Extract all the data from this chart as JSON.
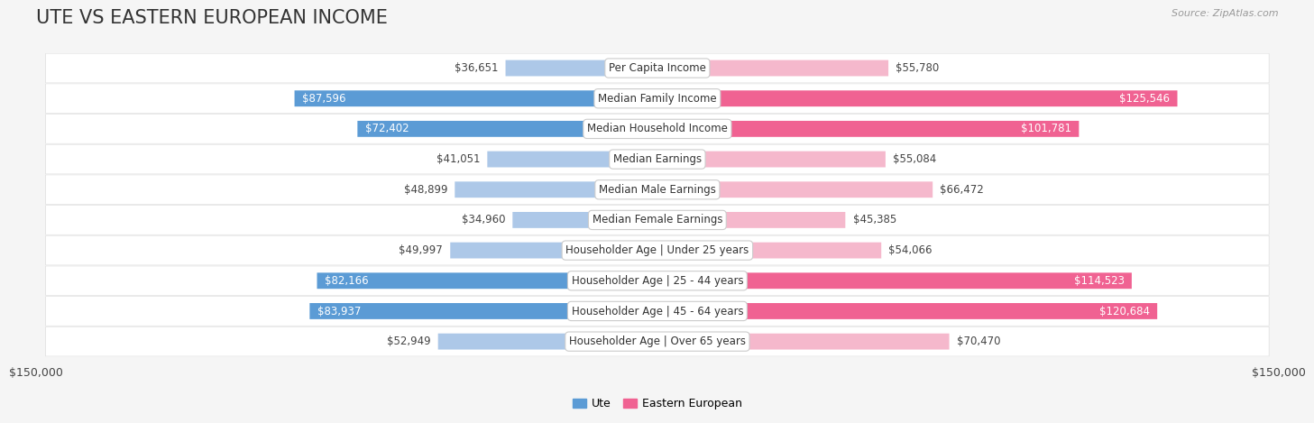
{
  "title": "UTE VS EASTERN EUROPEAN INCOME",
  "source": "Source: ZipAtlas.com",
  "categories": [
    "Per Capita Income",
    "Median Family Income",
    "Median Household Income",
    "Median Earnings",
    "Median Male Earnings",
    "Median Female Earnings",
    "Householder Age | Under 25 years",
    "Householder Age | 25 - 44 years",
    "Householder Age | 45 - 64 years",
    "Householder Age | Over 65 years"
  ],
  "ute_values": [
    36651,
    87596,
    72402,
    41051,
    48899,
    34960,
    49997,
    82166,
    83937,
    52949
  ],
  "eastern_values": [
    55780,
    125546,
    101781,
    55084,
    66472,
    45385,
    54066,
    114523,
    120684,
    70470
  ],
  "ute_labels": [
    "$36,651",
    "$87,596",
    "$72,402",
    "$41,051",
    "$48,899",
    "$34,960",
    "$49,997",
    "$82,166",
    "$83,937",
    "$52,949"
  ],
  "eastern_labels": [
    "$55,780",
    "$125,546",
    "$101,781",
    "$55,084",
    "$66,472",
    "$45,385",
    "$54,066",
    "$114,523",
    "$120,684",
    "$70,470"
  ],
  "ute_color_light": "#adc8e8",
  "ute_color_dark": "#5b9bd5",
  "eastern_color_light": "#f5b8cc",
  "eastern_color_dark": "#f06292",
  "max_value": 150000,
  "background_color": "#f5f5f5",
  "row_bg_color": "#ffffff",
  "row_border_color": "#d0d0d0",
  "legend_ute": "Ute",
  "legend_eastern": "Eastern European",
  "xlabel_left": "$150,000",
  "xlabel_right": "$150,000",
  "title_fontsize": 15,
  "label_fontsize": 8.5,
  "cat_fontsize": 8.5,
  "source_fontsize": 8
}
